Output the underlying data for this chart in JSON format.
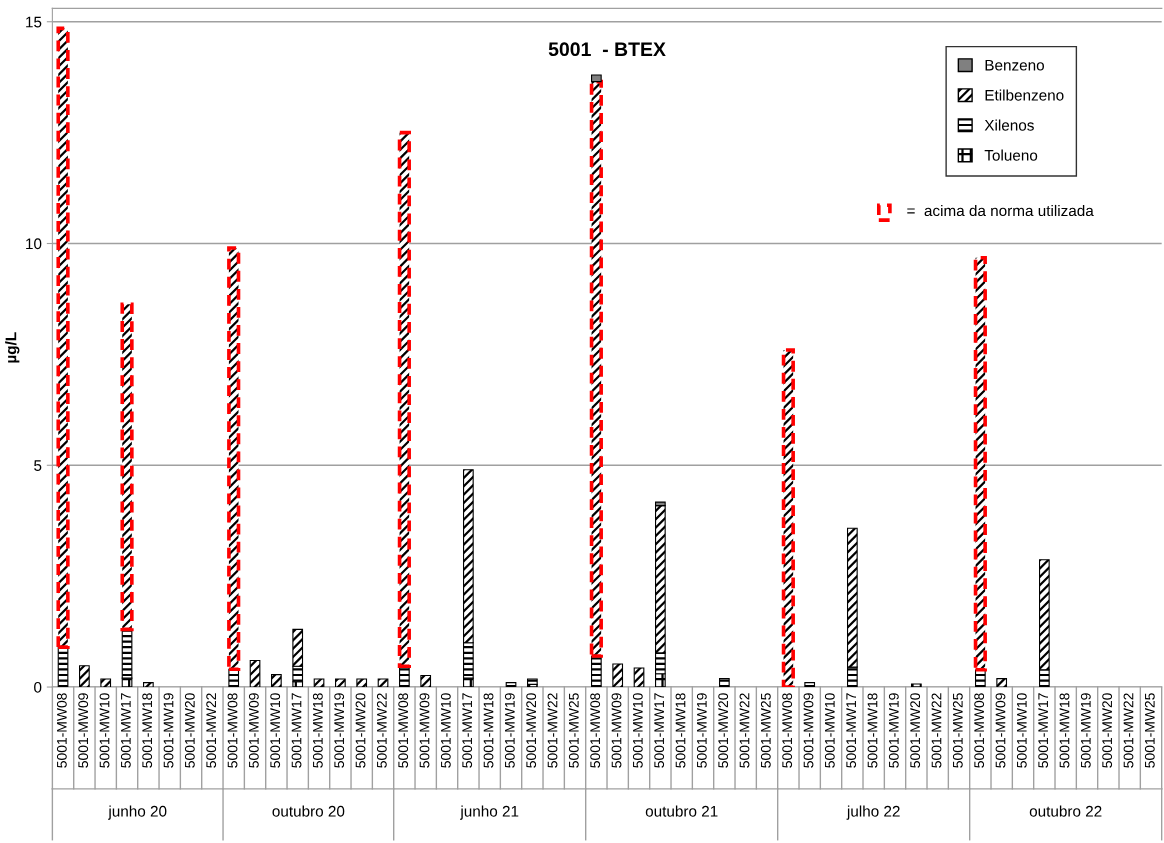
{
  "chart_data": {
    "type": "bar",
    "stacked": true,
    "title": "5001  - BTEX",
    "ylabel": "µg/L",
    "categories": [
      "5001-MW08",
      "5001-MW09",
      "5001-MW10",
      "5001-MW17",
      "5001-MW18",
      "5001-MW19",
      "5001-MW20",
      "5001-MW22",
      "5001-MW08",
      "5001-MW09",
      "5001-MW10",
      "5001-MW17",
      "5001-MW18",
      "5001-MW19",
      "5001-MW20",
      "5001-MW22",
      "5001-MW08",
      "5001-MW09",
      "5001-MW10",
      "5001-MW17",
      "5001-MW18",
      "5001-MW19",
      "5001-MW20",
      "5001-MW22",
      "5001-MW25",
      "5001-MW08",
      "5001-MW09",
      "5001-MW10",
      "5001-MW17",
      "5001-MW18",
      "5001-MW19",
      "5001-MW20",
      "5001-MW22",
      "5001-MW25",
      "5001-MW08",
      "5001-MW09",
      "5001-MW10",
      "5001-MW17",
      "5001-MW18",
      "5001-MW19",
      "5001-MW20",
      "5001-MW22",
      "5001-MW25",
      "5001-MW08",
      "5001-MW09",
      "5001-MW10",
      "5001-MW17",
      "5001-MW18",
      "5001-MW19",
      "5001-MW20",
      "5001-MW22",
      "5001-MW25"
    ],
    "series": [
      {
        "name": "Tolueno",
        "color": "#000000",
        "values": [
          0,
          0,
          0,
          0.2,
          0,
          0,
          0,
          0,
          0,
          0,
          0,
          0.12,
          0,
          0,
          0,
          0,
          0,
          0,
          0,
          0.2,
          0,
          0,
          0.06,
          0,
          0,
          0,
          0,
          0,
          0.3,
          0,
          0,
          0,
          0,
          0,
          0,
          0,
          0,
          0,
          0,
          0,
          0.07,
          0,
          0,
          0,
          0,
          0,
          0,
          0,
          0,
          0,
          0,
          0
        ]
      },
      {
        "name": "Xilenos",
        "color": "#000000",
        "values": [
          0.9,
          0,
          0,
          1.1,
          0,
          0,
          0,
          0,
          0.4,
          0,
          0,
          0.35,
          0,
          0,
          0,
          0,
          0.47,
          0,
          0,
          0.8,
          0,
          0.1,
          0.12,
          0,
          0,
          0.7,
          0,
          0,
          0.47,
          0,
          0,
          0.19,
          0,
          0,
          0,
          0.1,
          0,
          0.45,
          0,
          0,
          0,
          0,
          0,
          0.39,
          0,
          0,
          0.39,
          0,
          0,
          0,
          0,
          0
        ]
      },
      {
        "name": "Etilbenzeno",
        "color": "#000000",
        "values": [
          13.95,
          0.48,
          0.18,
          7.33,
          0.1,
          0,
          0,
          0,
          9.5,
          0.6,
          0.28,
          0.83,
          0.18,
          0.18,
          0.18,
          0.18,
          12.03,
          0.26,
          0,
          3.9,
          0,
          0,
          0,
          0,
          0,
          12.95,
          0.52,
          0.43,
          3.32,
          0,
          0,
          0,
          0,
          0,
          7.6,
          0,
          0,
          3.13,
          0,
          0,
          0,
          0,
          0,
          9.29,
          0.19,
          0,
          2.48,
          0,
          0,
          0,
          0,
          0
        ],
        "colors": [
          "#ff0000",
          "#000000",
          "#000000",
          "#ff0000",
          "#000000",
          "#000000",
          "#000000",
          "#000000",
          "#ff0000",
          "#000000",
          "#000000",
          "#000000",
          "#000000",
          "#000000",
          "#000000",
          "#000000",
          "#ff0000",
          "#000000",
          "#000000",
          "#000000",
          "#000000",
          "#000000",
          "#000000",
          "#000000",
          "#000000",
          "#ff0000",
          "#000000",
          "#000000",
          "#000000",
          "#000000",
          "#000000",
          "#000000",
          "#000000",
          "#000000",
          "#ff0000",
          "#000000",
          "#000000",
          "#000000",
          "#000000",
          "#000000",
          "#000000",
          "#000000",
          "#000000",
          "#ff0000",
          "#000000",
          "#000000",
          "#000000",
          "#000000",
          "#000000",
          "#000000",
          "#000000",
          "#000000"
        ]
      },
      {
        "name": "Benzeno",
        "color": "#808080",
        "values": [
          0,
          0,
          0,
          0,
          0,
          0,
          0,
          0,
          0,
          0,
          0,
          0,
          0,
          0,
          0,
          0,
          0,
          0,
          0,
          0,
          0,
          0,
          0,
          0,
          0,
          0.15,
          0,
          0,
          0.08,
          0,
          0,
          0,
          0,
          0,
          0,
          0,
          0,
          0,
          0,
          0,
          0,
          0,
          0,
          0,
          0,
          0,
          0,
          0,
          0,
          0,
          0,
          0
        ]
      }
    ],
    "annotations": [
      "junho 20",
      "outubro 20",
      "junho 21",
      "outubro 21",
      "julho 22",
      "outubro 22",
      "=  acima da norma utilizada"
    ],
    "ylim": [
      0,
      15.3
    ],
    "yticks": [
      0,
      5,
      10,
      15
    ],
    "grid": "y",
    "legend": "top right"
  }
}
